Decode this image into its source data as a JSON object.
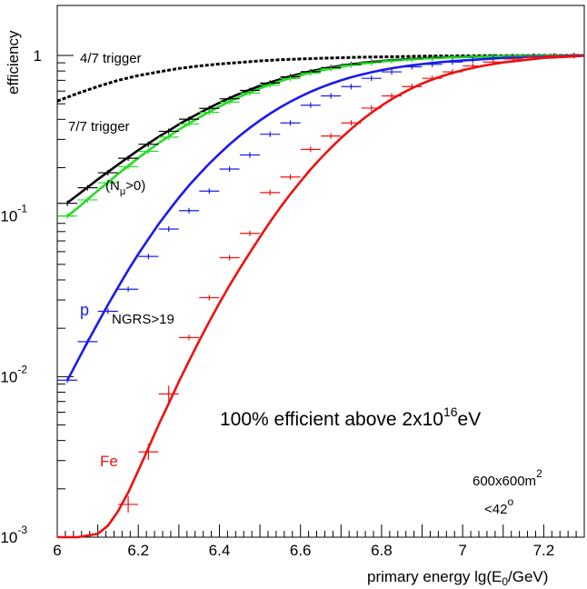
{
  "chart_data": {
    "type": "line",
    "xlabel": "primary energy lg(E",
    "xlabel_sub": "0",
    "xlabel_end": "/GeV)",
    "ylabel": "efficiency",
    "xlim": [
      6.0,
      7.3
    ],
    "ylim": [
      0.001,
      1.5
    ],
    "yscale": "log",
    "x_ticks": [
      6,
      6.2,
      6.4,
      6.6,
      6.8,
      7,
      7.2
    ],
    "x_tick_labels": [
      "6",
      "6.2",
      "6.4",
      "6.6",
      "6.8",
      "7",
      "7.2"
    ],
    "y_ticks": [
      {
        "value": 1,
        "base": "1",
        "exp": ""
      },
      {
        "value": 0.1,
        "base": "10",
        "exp": "-1"
      },
      {
        "value": 0.01,
        "base": "10",
        "exp": "-2"
      },
      {
        "value": 0.001,
        "base": "10",
        "exp": "-3"
      }
    ],
    "grid": false,
    "series": [
      {
        "name": "4/7 trigger",
        "color": "#000000",
        "style": "dashed",
        "x": [
          6.0,
          6.05,
          6.1,
          6.15,
          6.2,
          6.25,
          6.3,
          6.35,
          6.4,
          6.45,
          6.5,
          6.55,
          6.6,
          6.65,
          6.7,
          6.75,
          6.8,
          6.85,
          6.9,
          6.95,
          7.0,
          7.1,
          7.2,
          7.3
        ],
        "y": [
          0.52,
          0.58,
          0.64,
          0.7,
          0.75,
          0.79,
          0.83,
          0.86,
          0.885,
          0.905,
          0.925,
          0.94,
          0.95,
          0.96,
          0.968,
          0.975,
          0.98,
          0.985,
          0.99,
          0.993,
          0.995,
          0.998,
          1.0,
          1.0
        ]
      },
      {
        "name": "7/7 trigger",
        "color": "#000000",
        "style": "solid",
        "x": [
          6.025,
          6.05,
          6.075,
          6.1,
          6.125,
          6.15,
          6.175,
          6.2,
          6.225,
          6.25,
          6.275,
          6.3,
          6.325,
          6.35,
          6.375,
          6.4,
          6.425,
          6.45,
          6.475,
          6.5,
          6.525,
          6.55,
          6.575,
          6.6,
          6.625,
          6.65,
          6.675,
          6.7,
          6.725,
          6.75,
          6.775,
          6.8,
          6.825,
          6.85,
          6.875,
          6.9,
          6.925,
          6.95,
          6.975,
          7.0,
          7.1,
          7.2,
          7.3
        ],
        "y": [
          0.121,
          0.135,
          0.151,
          0.169,
          0.188,
          0.209,
          0.232,
          0.257,
          0.283,
          0.311,
          0.34,
          0.372,
          0.404,
          0.437,
          0.472,
          0.507,
          0.543,
          0.578,
          0.612,
          0.647,
          0.679,
          0.712,
          0.742,
          0.77,
          0.797,
          0.821,
          0.843,
          0.863,
          0.88,
          0.896,
          0.91,
          0.922,
          0.933,
          0.943,
          0.951,
          0.958,
          0.965,
          0.97,
          0.975,
          0.979,
          0.99,
          0.996,
          0.999
        ]
      },
      {
        "name": "(Nμ>0)",
        "color": "#22dd22",
        "style": "solid",
        "x": [
          6.025,
          6.05,
          6.075,
          6.1,
          6.125,
          6.15,
          6.175,
          6.2,
          6.225,
          6.25,
          6.275,
          6.3,
          6.325,
          6.35,
          6.375,
          6.4,
          6.425,
          6.45,
          6.475,
          6.5,
          6.525,
          6.55,
          6.575,
          6.6,
          6.625,
          6.65,
          6.675,
          6.7,
          6.725,
          6.75,
          6.775,
          6.8,
          6.825,
          6.85,
          6.875,
          6.9,
          6.925,
          6.95,
          6.975,
          7.0,
          7.1,
          7.2,
          7.3
        ],
        "y": [
          0.1,
          0.112,
          0.127,
          0.144,
          0.162,
          0.183,
          0.205,
          0.23,
          0.256,
          0.284,
          0.313,
          0.345,
          0.377,
          0.411,
          0.445,
          0.481,
          0.517,
          0.553,
          0.589,
          0.624,
          0.658,
          0.692,
          0.723,
          0.753,
          0.781,
          0.807,
          0.83,
          0.852,
          0.871,
          0.888,
          0.903,
          0.916,
          0.928,
          0.938,
          0.947,
          0.955,
          0.962,
          0.968,
          0.973,
          0.977,
          0.989,
          0.996,
          0.999
        ]
      },
      {
        "name": "p",
        "color": "#1a1aee",
        "style": "solid",
        "x": [
          6.025,
          6.05,
          6.075,
          6.1,
          6.125,
          6.15,
          6.175,
          6.2,
          6.225,
          6.25,
          6.275,
          6.3,
          6.325,
          6.35,
          6.375,
          6.4,
          6.425,
          6.45,
          6.475,
          6.5,
          6.525,
          6.55,
          6.575,
          6.6,
          6.625,
          6.65,
          6.675,
          6.7,
          6.725,
          6.75,
          6.775,
          6.8,
          6.825,
          6.85,
          6.875,
          6.9,
          6.925,
          6.95,
          6.975,
          7.0,
          7.1,
          7.2,
          7.3
        ],
        "y": [
          0.0095,
          0.0125,
          0.0165,
          0.0215,
          0.028,
          0.036,
          0.046,
          0.058,
          0.072,
          0.089,
          0.108,
          0.13,
          0.155,
          0.182,
          0.212,
          0.244,
          0.279,
          0.316,
          0.354,
          0.394,
          0.434,
          0.475,
          0.515,
          0.555,
          0.594,
          0.631,
          0.667,
          0.7,
          0.731,
          0.76,
          0.786,
          0.81,
          0.832,
          0.851,
          0.869,
          0.884,
          0.898,
          0.91,
          0.921,
          0.93,
          0.965,
          0.99,
          0.998
        ]
      },
      {
        "name": "Fe",
        "color": "#ee1111",
        "style": "solid",
        "x": [
          6.0,
          6.05,
          6.1,
          6.125,
          6.15,
          6.175,
          6.2,
          6.225,
          6.25,
          6.275,
          6.3,
          6.325,
          6.35,
          6.375,
          6.4,
          6.425,
          6.45,
          6.475,
          6.5,
          6.525,
          6.55,
          6.575,
          6.6,
          6.625,
          6.65,
          6.675,
          6.7,
          6.725,
          6.75,
          6.775,
          6.8,
          6.825,
          6.85,
          6.875,
          6.9,
          6.925,
          6.95,
          6.975,
          7.0,
          7.05,
          7.1,
          7.2,
          7.3
        ],
        "y": [
          0.001,
          0.001,
          0.00105,
          0.00118,
          0.00145,
          0.0019,
          0.0026,
          0.0036,
          0.005,
          0.0068,
          0.0093,
          0.0125,
          0.0167,
          0.022,
          0.0287,
          0.037,
          0.047,
          0.059,
          0.074,
          0.092,
          0.113,
          0.137,
          0.164,
          0.195,
          0.229,
          0.266,
          0.306,
          0.349,
          0.394,
          0.44,
          0.487,
          0.534,
          0.58,
          0.625,
          0.668,
          0.708,
          0.745,
          0.779,
          0.81,
          0.862,
          0.905,
          0.965,
          0.995
        ]
      }
    ],
    "points": [
      {
        "series": "7/7 trigger",
        "color": "#000000",
        "x": [
          6.025,
          6.075,
          6.125,
          6.175,
          6.225,
          6.275,
          6.325,
          6.375,
          6.425,
          6.475,
          6.525,
          6.575,
          6.625,
          6.675,
          6.725,
          6.775,
          6.825,
          6.875,
          6.925,
          6.975,
          7.025,
          7.075,
          7.125,
          7.175,
          7.225,
          7.275
        ],
        "y": [
          0.12,
          0.15,
          0.186,
          0.229,
          0.28,
          0.337,
          0.401,
          0.468,
          0.537,
          0.606,
          0.673,
          0.736,
          0.792,
          0.84,
          0.879,
          0.91,
          0.933,
          0.95,
          0.963,
          0.972,
          0.98,
          0.986,
          0.99,
          0.994,
          0.997,
          0.999
        ]
      },
      {
        "series": "(Nμ>0)",
        "color": "#22dd22",
        "x": [
          6.025,
          6.075,
          6.125,
          6.175,
          6.225,
          6.275,
          6.325,
          6.375,
          6.425,
          6.475,
          6.525,
          6.575,
          6.625,
          6.675,
          6.725,
          6.775,
          6.825,
          6.875,
          6.925,
          6.975,
          7.025,
          7.075,
          7.125,
          7.175,
          7.225,
          7.275
        ],
        "y": [
          0.1,
          0.126,
          0.161,
          0.203,
          0.253,
          0.31,
          0.374,
          0.442,
          0.512,
          0.583,
          0.653,
          0.718,
          0.776,
          0.827,
          0.869,
          0.902,
          0.927,
          0.945,
          0.959,
          0.97,
          0.978,
          0.985,
          0.99,
          0.994,
          0.997,
          0.999
        ]
      },
      {
        "series": "p",
        "color": "#1a1aee",
        "x": [
          6.025,
          6.075,
          6.125,
          6.175,
          6.225,
          6.275,
          6.325,
          6.375,
          6.425,
          6.475,
          6.525,
          6.575,
          6.625,
          6.675,
          6.725,
          6.775,
          6.825,
          6.875,
          6.925,
          6.975,
          7.025,
          7.075,
          7.125,
          7.175,
          7.225,
          7.275
        ],
        "y": [
          0.0095,
          0.0165,
          0.0255,
          0.035,
          0.056,
          0.083,
          0.108,
          0.143,
          0.196,
          0.24,
          0.323,
          0.38,
          0.49,
          0.56,
          0.64,
          0.72,
          0.79,
          0.85,
          0.88,
          0.91,
          0.94,
          0.96,
          0.975,
          0.985,
          0.993,
          0.998
        ]
      },
      {
        "series": "Fe",
        "color": "#ee1111",
        "x": [
          6.175,
          6.225,
          6.275,
          6.325,
          6.375,
          6.425,
          6.475,
          6.525,
          6.575,
          6.625,
          6.675,
          6.725,
          6.775,
          6.825,
          6.875,
          6.925,
          6.975,
          7.025,
          7.075,
          7.125,
          7.175,
          7.225,
          7.275
        ],
        "y": [
          0.0016,
          0.0034,
          0.0078,
          0.0175,
          0.031,
          0.055,
          0.078,
          0.14,
          0.175,
          0.26,
          0.315,
          0.38,
          0.47,
          0.56,
          0.64,
          0.72,
          0.79,
          0.86,
          0.91,
          0.95,
          0.975,
          0.99,
          0.998
        ]
      }
    ],
    "annotations": {
      "label_47": "4/7 trigger",
      "label_77": "7/7 trigger",
      "label_nmu_open": "(N",
      "label_nmu_sub": "μ",
      "label_nmu_close": ">0)",
      "label_p": "p",
      "label_ngrs": "NGRS>19",
      "label_fe": "Fe",
      "efficient_pre": "100% efficient above 2x10",
      "efficient_exp": "16",
      "efficient_post": "eV",
      "area_text": "600x600m",
      "area_exp": "2",
      "angle_text": "<42",
      "angle_exp": "o"
    }
  }
}
